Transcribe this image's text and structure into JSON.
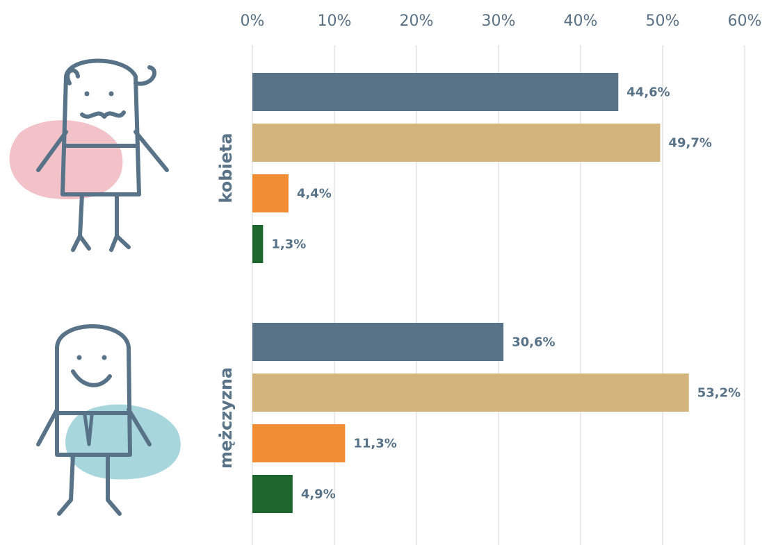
{
  "chart_data": {
    "type": "bar",
    "orientation": "horizontal",
    "categories": [
      "kobieta",
      "mężczyzna"
    ],
    "series": [
      {
        "color": "#587388",
        "values": [
          44.6,
          30.6
        ],
        "value_labels": [
          "44,6%",
          "30,6%"
        ]
      },
      {
        "color": "#d3b47c",
        "values": [
          49.7,
          53.2
        ],
        "value_labels": [
          "49,7%",
          "53,2%"
        ]
      },
      {
        "color": "#f18d35",
        "values": [
          4.4,
          11.3
        ],
        "value_labels": [
          "4,4%",
          "11,3%"
        ]
      },
      {
        "color": "#1d662e",
        "values": [
          1.3,
          4.9
        ],
        "value_labels": [
          "1,3%",
          "4,9%"
        ]
      }
    ],
    "xlim": [
      0,
      60
    ],
    "xticks": [
      {
        "value": 0,
        "label": "0%"
      },
      {
        "value": 10,
        "label": "10%"
      },
      {
        "value": 20,
        "label": "20%"
      },
      {
        "value": 30,
        "label": "30%"
      },
      {
        "value": 40,
        "label": "40%"
      },
      {
        "value": 50,
        "label": "50%"
      },
      {
        "value": 60,
        "label": "60%"
      }
    ],
    "grid": true
  }
}
